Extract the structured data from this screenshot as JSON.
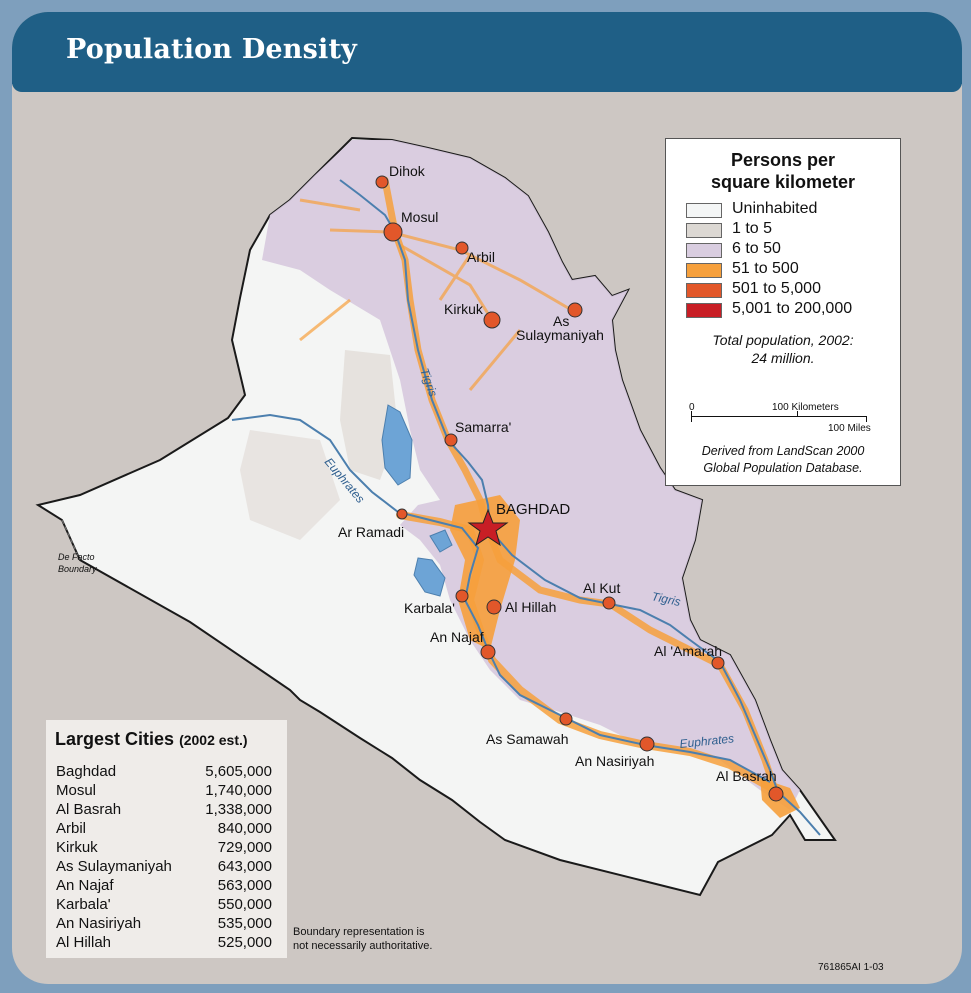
{
  "title": "Population Density",
  "legend": {
    "title_line1": "Persons per",
    "title_line2": "square kilometer",
    "items": [
      {
        "label": "Uninhabited",
        "color": "#f4f6f6"
      },
      {
        "label": "1 to 5",
        "color": "#dcd8d3"
      },
      {
        "label": "6 to 50",
        "color": "#d9cde0"
      },
      {
        "label": "51 to 500",
        "color": "#f6a03c"
      },
      {
        "label": "501 to 5,000",
        "color": "#e2572a"
      },
      {
        "label": "5,001 to 200,000",
        "color": "#c81e25"
      }
    ],
    "total_line1": "Total population, 2002:",
    "total_line2": "24 million.",
    "scale_km": "100 Kilometers",
    "scale_mi": "100 Miles",
    "scale_zero": "0",
    "source_line1": "Derived from LandScan 2000",
    "source_line2": "Global Population Database."
  },
  "map_labels": {
    "dihok": "Dihok",
    "mosul": "Mosul",
    "arbil": "Arbil",
    "kirkuk": "Kirkuk",
    "sulay1": "As",
    "sulay2": "Sulaymaniyah",
    "samarra": "Samarra'",
    "tigris_north": "Tigris",
    "baghdad": "BAGHDAD",
    "ramadi": "Ar Ramadi",
    "euphrates_west": "Euphrates",
    "karbala": "Karbala'",
    "hillah": "Al Hillah",
    "najaf": "An Najaf",
    "kut": "Al Kut",
    "tigris_south": "Tigris",
    "amarah": "Al 'Amarah",
    "samawah": "As Samawah",
    "euphrates_south": "Euphrates",
    "nasiriyah": "An Nasiriyah",
    "basrah": "Al Basrah",
    "defacto1": "De Facto",
    "defacto2": "Boundary"
  },
  "largest_cities": {
    "title": "Largest Cities",
    "subtitle": "(2002 est.)",
    "rows": [
      {
        "name": "Baghdad",
        "pop": "5,605,000"
      },
      {
        "name": "Mosul",
        "pop": "1,740,000"
      },
      {
        "name": "Al Basrah",
        "pop": "1,338,000"
      },
      {
        "name": "Arbil",
        "pop": "840,000"
      },
      {
        "name": "Kirkuk",
        "pop": "729,000"
      },
      {
        "name": "As Sulaymaniyah",
        "pop": "643,000"
      },
      {
        "name": "An Najaf",
        "pop": "563,000"
      },
      {
        "name": "Karbala'",
        "pop": "550,000"
      },
      {
        "name": "An Nasiriyah",
        "pop": "535,000"
      },
      {
        "name": "Al Hillah",
        "pop": "525,000"
      }
    ]
  },
  "boundary_note_line1": "Boundary representation is",
  "boundary_note_line2": "not necessarily authoritative.",
  "map_code": "761865AI 1-03",
  "colors": {
    "sea": "#7e9fbd",
    "panel": "#cdc7c3",
    "title_bar": "#1f5f86",
    "water": "#6da4d6",
    "river": "#4c7fae"
  }
}
